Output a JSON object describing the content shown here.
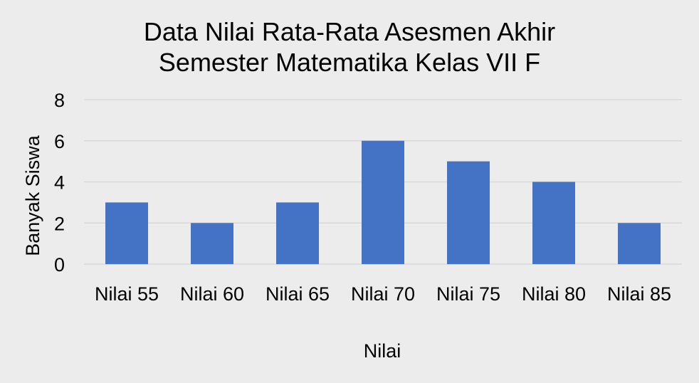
{
  "chart_data": {
    "type": "bar",
    "title": [
      "Data Nilai Rata-Rata Asesmen Akhir",
      "Semester Matematika Kelas VII F"
    ],
    "xlabel": "Nilai",
    "ylabel": "Banyak Siswa",
    "categories": [
      "Nilai 55",
      "Nilai 60",
      "Nilai 65",
      "Nilai 70",
      "Nilai 75",
      "Nilai 80",
      "Nilai 85"
    ],
    "values": [
      3,
      2,
      3,
      6,
      5,
      4,
      2
    ],
    "ylim": [
      0,
      8
    ],
    "yticks": [
      "0",
      "2",
      "4",
      "6",
      "8"
    ],
    "grid": true,
    "legend": "none",
    "colors": {
      "bar": "#4472c4",
      "grid": "#d9d9d9",
      "background": "#ececec",
      "text": "#000000"
    }
  }
}
